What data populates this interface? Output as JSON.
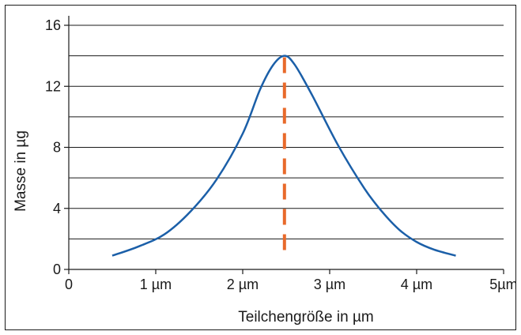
{
  "chart_data": {
    "type": "line",
    "title": "",
    "xlabel": "Teilchengröße in µm",
    "ylabel": "Masse in µg",
    "xlim": [
      0,
      5
    ],
    "ylim": [
      0,
      16
    ],
    "x_ticks": [
      0,
      1,
      2,
      3,
      4,
      5
    ],
    "x_tick_labels": [
      "0",
      "1 µm",
      "2 µm",
      "3 µm",
      "4 µm",
      "5µm"
    ],
    "y_ticks": [
      0,
      4,
      8,
      12,
      16
    ],
    "y_tick_labels": [
      "0",
      "4",
      "8",
      "12",
      "16"
    ],
    "gridlines_y": [
      2,
      4,
      6,
      8,
      10,
      12,
      14,
      16
    ],
    "grid": true,
    "legend": "none",
    "series": [
      {
        "color": "#1b5fa8",
        "x": [
          0.5,
          0.8,
          1.1,
          1.4,
          1.7,
          2.0,
          2.2,
          2.35,
          2.48,
          2.6,
          2.8,
          3.1,
          3.4,
          3.6,
          3.8,
          4.0,
          4.2,
          4.45
        ],
        "y": [
          0.9,
          1.5,
          2.3,
          3.8,
          5.9,
          8.9,
          11.8,
          13.4,
          14.0,
          13.4,
          11.4,
          8.1,
          5.3,
          3.8,
          2.6,
          1.8,
          1.3,
          0.9
        ]
      }
    ],
    "annotations": [
      {
        "type": "vertical-dashed-line",
        "x": 2.48,
        "y_from": 0.7,
        "y_to": 13.9,
        "color": "#e8692a"
      }
    ],
    "colors": {
      "curve": "#1b5fa8",
      "marker_line": "#e8692a",
      "axis": "#1a1a1a",
      "grid": "#1a1a1a"
    }
  }
}
